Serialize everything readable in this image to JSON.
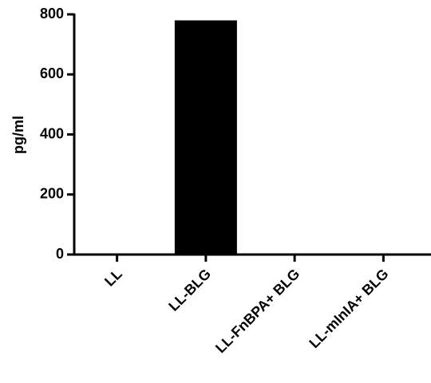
{
  "chart_data": {
    "type": "bar",
    "y_label": "pg/ml",
    "categories": [
      "LL",
      "LL-BLG",
      "LL-FnBPA+ BLG",
      "LL-mInIA+ BLG"
    ],
    "values": [
      0,
      780,
      0,
      0
    ],
    "color": "#000000",
    "ylim": [
      0,
      800
    ],
    "yticks": [
      0,
      200,
      400,
      600,
      800
    ],
    "grid": false
  }
}
